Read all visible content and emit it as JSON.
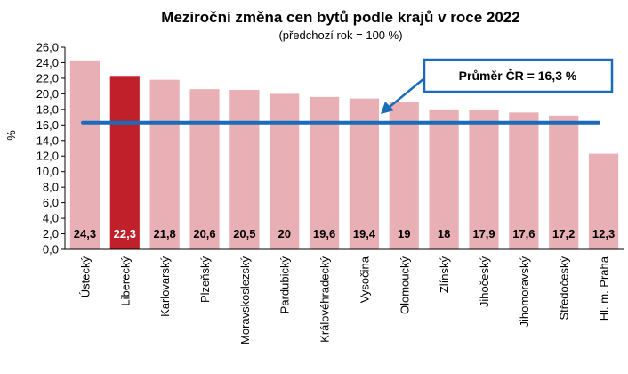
{
  "chart_data": {
    "type": "bar",
    "title": "Meziroční změna cen bytů podle krajů v roce 2022",
    "subtitle": "(předchozí rok = 100 %)",
    "ylabel": "%",
    "xlabel": "",
    "ylim": [
      0,
      26
    ],
    "yticks": [
      "0,0",
      "2,0",
      "4,0",
      "6,0",
      "8,0",
      "10,0",
      "12,0",
      "14,0",
      "16,0",
      "18,0",
      "20,0",
      "22,0",
      "24,0",
      "26,0"
    ],
    "grid": false,
    "categories": [
      "Ústecký",
      "Liberecký",
      "Karlovarský",
      "Plzeňský",
      "Moravskoslezský",
      "Pardubický",
      "Královéhradecký",
      "Vysočina",
      "Olomoucký",
      "Zlínský",
      "Jihočeský",
      "Jihomoravský",
      "Středočeský",
      "Hl. m. Praha"
    ],
    "values": [
      24.3,
      22.3,
      21.8,
      20.6,
      20.5,
      20,
      19.6,
      19.4,
      19,
      18,
      17.9,
      17.6,
      17.2,
      12.3
    ],
    "value_labels": [
      "24,3",
      "22,3",
      "21,8",
      "20,6",
      "20,5",
      "20",
      "19,6",
      "19,4",
      "19",
      "18",
      "17,9",
      "17,6",
      "17,2",
      "12,3"
    ],
    "highlight_index": 1,
    "average": {
      "value": 16.3,
      "label": "Průměr ČR = 16,3 %"
    },
    "colors": {
      "bar": "#e8b0b5",
      "highlight": "#c0202a",
      "average_line": "#1a6bb8",
      "value_label": "#000000",
      "highlight_label": "#ffffff"
    }
  }
}
